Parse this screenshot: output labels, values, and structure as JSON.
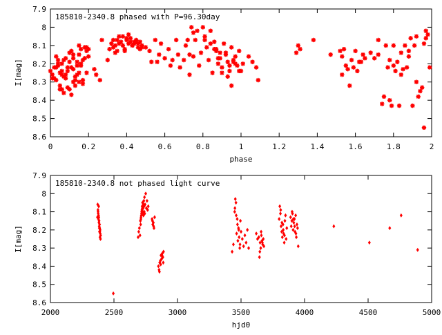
{
  "chart_data": [
    {
      "type": "scatter",
      "title": "185810-2340.8 phased with P=96.30day",
      "xlabel": "phase",
      "ylabel": "I[mag]",
      "xlim": [
        0,
        2
      ],
      "ylim": [
        7.9,
        8.6
      ],
      "y_inverted": true,
      "x_ticks": [
        "0",
        "0.2",
        "0.4",
        "0.6",
        "0.8",
        "1",
        "1.2",
        "1.4",
        "1.6",
        "1.8",
        "2"
      ],
      "y_ticks": [
        "7.9",
        "8",
        "8.1",
        "8.2",
        "8.3",
        "8.4",
        "8.5",
        "8.6"
      ],
      "grid": false,
      "marker": "star",
      "series": [
        {
          "color": "#ff0000",
          "x": [
            0.0,
            0.01,
            0.02,
            0.03,
            0.04,
            0.05,
            0.06,
            0.06,
            0.07,
            0.08,
            0.09,
            0.1,
            0.1,
            0.11,
            0.12,
            0.12,
            0.13,
            0.14,
            0.15,
            0.15,
            0.16,
            0.17,
            0.02,
            0.03,
            0.04,
            0.05,
            0.06,
            0.07,
            0.08,
            0.09,
            0.11,
            0.13,
            0.14,
            0.16,
            0.17,
            0.18,
            0.18,
            0.19,
            0.19,
            0.2,
            0.01,
            0.03,
            0.05,
            0.07,
            0.09,
            0.1,
            0.12,
            0.14,
            0.15,
            0.17,
            0.04,
            0.06,
            0.08,
            0.11,
            0.13,
            0.16,
            0.19,
            0.2,
            0.12,
            0.15,
            0.23,
            0.24,
            0.26,
            0.27,
            0.3,
            0.31,
            0.32,
            0.33,
            0.34,
            0.35,
            0.36,
            0.37,
            0.38,
            0.39,
            0.4,
            0.41,
            0.42,
            0.43,
            0.44,
            0.45,
            0.46,
            0.47,
            0.48,
            0.33,
            0.36,
            0.39,
            0.42,
            0.45,
            0.48,
            0.34,
            0.38,
            0.41,
            0.44,
            0.47,
            0.35,
            0.4,
            0.43,
            0.46,
            0.5,
            0.52,
            0.53,
            0.55,
            0.56,
            0.57,
            0.58,
            0.6,
            0.62,
            0.63,
            0.64,
            0.66,
            0.67,
            0.68,
            0.7,
            0.71,
            0.72,
            0.73,
            0.74,
            0.75,
            0.76,
            0.77,
            0.78,
            0.79,
            0.8,
            0.81,
            0.82,
            0.83,
            0.84,
            0.85,
            0.86,
            0.87,
            0.88,
            0.89,
            0.9,
            0.91,
            0.92,
            0.93,
            0.94,
            0.95,
            0.96,
            0.97,
            0.98,
            0.99,
            1.0,
            1.01,
            1.04,
            1.06,
            1.08,
            1.09,
            0.87,
            0.88,
            0.9,
            0.92,
            0.94,
            0.96,
            0.97,
            0.99,
            0.73,
            0.75,
            0.81,
            0.84,
            0.86,
            0.89,
            0.93,
            0.95,
            1.29,
            1.3,
            1.31,
            1.38,
            1.47,
            1.52,
            1.53,
            1.54,
            1.56,
            1.58,
            1.6,
            1.62,
            1.64,
            1.53,
            1.55,
            1.57,
            1.59,
            1.61,
            1.63,
            1.65,
            1.68,
            1.7,
            1.72,
            1.74,
            1.75,
            1.76,
            1.77,
            1.78,
            1.79,
            1.8,
            1.81,
            1.82,
            1.83,
            1.84,
            1.85,
            1.86,
            1.87,
            1.88,
            1.89,
            1.9,
            1.91,
            1.92,
            1.93,
            1.94,
            1.95,
            1.96,
            1.97,
            1.98,
            1.99,
            1.72,
            1.78,
            1.8,
            1.84,
            1.88,
            1.92,
            1.96,
            1.97
          ],
          "y": [
            8.24,
            8.26,
            8.22,
            8.29,
            8.18,
            8.25,
            8.34,
            8.2,
            8.36,
            8.28,
            8.22,
            8.34,
            8.19,
            8.37,
            8.23,
            8.17,
            8.29,
            8.26,
            8.3,
            8.15,
            8.21,
            8.31,
            8.28,
            8.16,
            8.21,
            8.34,
            8.24,
            8.18,
            8.26,
            8.33,
            8.22,
            8.27,
            8.19,
            8.12,
            8.29,
            8.11,
            8.17,
            8.25,
            8.11,
            8.16,
            8.28,
            8.22,
            8.32,
            8.27,
            8.24,
            8.14,
            8.3,
            8.21,
            8.25,
            8.18,
            8.2,
            8.26,
            8.17,
            8.13,
            8.32,
            8.2,
            8.13,
            8.12,
            8.15,
            8.1,
            8.23,
            8.26,
            8.29,
            8.07,
            8.18,
            8.12,
            8.09,
            8.11,
            8.14,
            8.07,
            8.05,
            8.08,
            8.1,
            8.13,
            8.06,
            8.04,
            8.08,
            8.1,
            8.09,
            8.07,
            8.11,
            8.08,
            8.1,
            8.07,
            8.09,
            8.12,
            8.06,
            8.08,
            8.11,
            8.1,
            8.05,
            8.09,
            8.08,
            8.12,
            8.13,
            8.07,
            8.1,
            8.09,
            8.11,
            8.13,
            8.19,
            8.07,
            8.19,
            8.15,
            8.09,
            8.17,
            8.12,
            8.21,
            8.18,
            8.07,
            8.15,
            8.22,
            8.18,
            8.1,
            8.07,
            8.26,
            8.0,
            8.16,
            8.07,
            8.02,
            8.21,
            8.14,
            8.0,
            8.07,
            8.11,
            8.18,
            8.02,
            8.25,
            8.08,
            8.13,
            8.2,
            8.14,
            8.22,
            8.09,
            8.14,
            8.19,
            8.24,
            8.11,
            8.19,
            8.16,
            8.21,
            8.13,
            8.24,
            8.2,
            8.16,
            8.19,
            8.22,
            8.29,
            8.12,
            8.17,
            8.25,
            8.15,
            8.21,
            8.18,
            8.2,
            8.24,
            8.15,
            8.03,
            8.05,
            8.09,
            8.12,
            8.17,
            8.27,
            8.32,
            8.14,
            8.1,
            8.12,
            8.07,
            8.15,
            8.13,
            8.16,
            8.12,
            8.23,
            8.18,
            8.13,
            8.19,
            8.15,
            8.26,
            8.21,
            8.32,
            8.22,
            8.24,
            8.19,
            8.17,
            8.14,
            8.17,
            8.07,
            8.42,
            8.38,
            8.1,
            8.22,
            8.4,
            8.43,
            8.1,
            8.24,
            8.19,
            8.43,
            8.14,
            8.23,
            8.1,
            8.22,
            8.13,
            8.06,
            8.43,
            8.1,
            8.05,
            8.38,
            8.35,
            8.33,
            8.09,
            8.02,
            8.04,
            8.22,
            8.15,
            8.18,
            8.21,
            8.26,
            8.16,
            8.3,
            8.55,
            8.06
          ]
        }
      ]
    },
    {
      "type": "scatter",
      "title": "185810-2340.8 not phased light curve",
      "xlabel": "hjd0",
      "ylabel": "I[mag]",
      "xlim": [
        2000,
        5000
      ],
      "ylim": [
        7.9,
        8.6
      ],
      "y_inverted": true,
      "x_ticks": [
        "2000",
        "2500",
        "3000",
        "3500",
        "4000",
        "4500",
        "5000"
      ],
      "y_ticks": [
        "7.9",
        "8",
        "8.1",
        "8.2",
        "8.3",
        "8.4",
        "8.5",
        "8.6"
      ],
      "grid": false,
      "marker": "diamond",
      "series": [
        {
          "color": "#ff0000",
          "x": [
            2370,
            2372,
            2374,
            2376,
            2378,
            2380,
            2382,
            2384,
            2386,
            2388,
            2390,
            2392,
            2394,
            2375,
            2379,
            2383,
            2387,
            2391,
            2395,
            2381,
            2385,
            2389,
            2495,
            2690,
            2695,
            2700,
            2705,
            2710,
            2712,
            2715,
            2718,
            2720,
            2722,
            2725,
            2728,
            2730,
            2733,
            2735,
            2738,
            2740,
            2745,
            2750,
            2755,
            2760,
            2765,
            2770,
            2708,
            2713,
            2717,
            2723,
            2727,
            2732,
            2737,
            2742,
            2800,
            2805,
            2810,
            2815,
            2820,
            2803,
            2812,
            2850,
            2855,
            2860,
            2865,
            2870,
            2875,
            2880,
            2885,
            2890,
            2858,
            2868,
            2878,
            2888,
            3430,
            3440,
            3450,
            3455,
            3460,
            3465,
            3470,
            3475,
            3480,
            3485,
            3490,
            3495,
            3500,
            3510,
            3520,
            3530,
            3540,
            3550,
            3560,
            3452,
            3462,
            3472,
            3482,
            3492,
            3620,
            3630,
            3640,
            3645,
            3650,
            3655,
            3660,
            3665,
            3670,
            3675,
            3680,
            3648,
            3658,
            3668,
            3800,
            3805,
            3810,
            3815,
            3820,
            3825,
            3830,
            3835,
            3840,
            3845,
            3850,
            3855,
            3860,
            3812,
            3822,
            3832,
            3842,
            3890,
            3895,
            3900,
            3905,
            3910,
            3915,
            3920,
            3925,
            3930,
            3935,
            3940,
            3945,
            3950,
            3902,
            3912,
            3922,
            3932,
            4230,
            4510,
            4670,
            4760,
            4890
          ],
          "y": [
            8.13,
            8.06,
            8.09,
            8.11,
            8.14,
            8.07,
            8.16,
            8.18,
            8.21,
            8.19,
            8.24,
            8.22,
            8.25,
            8.1,
            8.12,
            8.15,
            8.17,
            8.2,
            8.23,
            8.13,
            8.19,
            8.21,
            8.55,
            8.24,
            8.21,
            8.19,
            8.23,
            8.17,
            8.14,
            8.12,
            8.1,
            8.09,
            8.07,
            8.05,
            8.11,
            8.08,
            8.06,
            8.04,
            8.1,
            8.02,
            8.06,
            8.0,
            8.08,
            8.04,
            8.09,
            8.07,
            8.15,
            8.13,
            8.11,
            8.08,
            8.1,
            8.12,
            8.07,
            8.11,
            8.14,
            8.17,
            8.16,
            8.19,
            8.13,
            8.15,
            8.18,
            8.4,
            8.42,
            8.38,
            8.37,
            8.34,
            8.36,
            8.33,
            8.35,
            8.32,
            8.43,
            8.39,
            8.34,
            8.38,
            8.32,
            8.28,
            8.1,
            8.03,
            8.05,
            8.22,
            8.14,
            8.26,
            8.19,
            8.24,
            8.3,
            8.15,
            8.21,
            8.25,
            8.29,
            8.23,
            8.27,
            8.2,
            8.3,
            8.08,
            8.12,
            8.17,
            8.2,
            8.28,
            8.22,
            8.25,
            8.24,
            8.35,
            8.27,
            8.3,
            8.23,
            8.26,
            8.28,
            8.25,
            8.29,
            8.32,
            8.21,
            8.27,
            8.14,
            8.07,
            8.11,
            8.18,
            8.21,
            8.24,
            8.17,
            8.22,
            8.27,
            8.15,
            8.12,
            8.25,
            8.19,
            8.09,
            8.16,
            8.2,
            8.23,
            8.13,
            8.18,
            8.15,
            8.11,
            8.2,
            8.16,
            8.14,
            8.21,
            8.12,
            8.24,
            8.17,
            8.19,
            8.29,
            8.1,
            8.14,
            8.18,
            8.22,
            8.18,
            8.27,
            8.19,
            8.12,
            8.31
          ]
        }
      ]
    }
  ]
}
